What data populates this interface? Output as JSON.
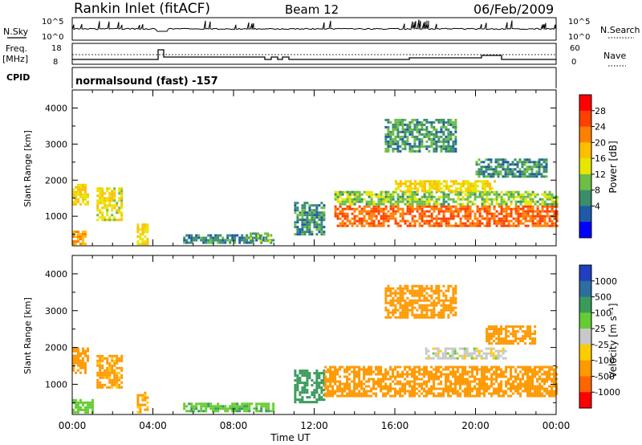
{
  "header": {
    "station": "Rankin Inlet (fitACF)",
    "beam": "Beam 12",
    "date": "06/Feb/2009"
  },
  "nsky_panel": {
    "left_label": "N.Sky",
    "left_ticks": [
      "10^5",
      "10^0"
    ],
    "right_label": "N.Search",
    "right_ticks": [
      "10^5",
      "10^0"
    ]
  },
  "freq_panel": {
    "left_label_1": "Freq.",
    "left_label_2": "[MHz]",
    "left_ticks": [
      "18",
      "8"
    ],
    "right_label": "Nave",
    "right_ticks": [
      "60",
      "0"
    ]
  },
  "cpid": {
    "label": "CPID",
    "value": "normalsound (fast) -157"
  },
  "power_colorbar": {
    "title": "Power [dB]",
    "ticks": [
      "28",
      "24",
      "20",
      "16",
      "12",
      "8",
      "4"
    ],
    "colors": [
      "#ff0000",
      "#ff4000",
      "#ff8000",
      "#ffbf00",
      "#e6e600",
      "#6cbe45",
      "#3b8e6b",
      "#1e5aa8",
      "#0000ff"
    ]
  },
  "velocity_colorbar": {
    "title": "Velocity [m s⁻¹]",
    "ticks": [
      "1000",
      "500",
      "100",
      "25",
      "-25",
      "-100",
      "-500",
      "-1000"
    ],
    "colors": [
      "#2040c0",
      "#2e6e9e",
      "#3a9a5a",
      "#66cc33",
      "#c8c8c8",
      "#ffcc00",
      "#ff9900",
      "#ff6600",
      "#ff0000"
    ]
  },
  "chart_data": [
    {
      "type": "heatmap",
      "name": "power",
      "xlabel": "",
      "ylabel": "Slant Range [km]",
      "x_ticks": [
        "00:00",
        "04:00",
        "08:00",
        "12:00",
        "16:00",
        "20:00",
        "00:00"
      ],
      "xlim_hours": [
        0,
        24
      ],
      "y_ticks": [
        1000,
        2000,
        3000,
        4000
      ],
      "ylim": [
        180,
        4500
      ],
      "colorbar": "Power [dB]",
      "regions": [
        {
          "t": [
            0.0,
            0.6
          ],
          "r": [
            250,
            600
          ],
          "v": 22
        },
        {
          "t": [
            0.0,
            0.8
          ],
          "r": [
            1300,
            1900
          ],
          "v": 18
        },
        {
          "t": [
            1.2,
            2.5
          ],
          "r": [
            900,
            1800
          ],
          "v": 17
        },
        {
          "t": [
            3.2,
            3.7
          ],
          "r": [
            250,
            800
          ],
          "v": 18
        },
        {
          "t": [
            5.5,
            10.0
          ],
          "r": [
            250,
            500
          ],
          "v": 7
        },
        {
          "t": [
            8.8,
            9.8
          ],
          "r": [
            300,
            550
          ],
          "v": 12
        },
        {
          "t": [
            11.0,
            12.5
          ],
          "r": [
            500,
            1400
          ],
          "v": 8
        },
        {
          "t": [
            13.0,
            24.0
          ],
          "r": [
            700,
            1300
          ],
          "v": 26
        },
        {
          "t": [
            13.0,
            24.0
          ],
          "r": [
            1300,
            1700
          ],
          "v": 13
        },
        {
          "t": [
            16.0,
            21.0
          ],
          "r": [
            1700,
            2000
          ],
          "v": 18
        },
        {
          "t": [
            15.5,
            19.0
          ],
          "r": [
            2800,
            3700
          ],
          "v": 9
        },
        {
          "t": [
            20.0,
            23.5
          ],
          "r": [
            2100,
            2600
          ],
          "v": 8
        }
      ]
    },
    {
      "type": "heatmap",
      "name": "velocity",
      "xlabel": "Time UT",
      "ylabel": "Slant Range [km]",
      "x_ticks": [
        "00:00",
        "04:00",
        "08:00",
        "12:00",
        "16:00",
        "20:00",
        "00:00"
      ],
      "xlim_hours": [
        0,
        24
      ],
      "y_ticks": [
        1000,
        2000,
        3000,
        4000
      ],
      "ylim": [
        180,
        4500
      ],
      "colorbar": "Velocity [m s⁻¹]",
      "regions": [
        {
          "t": [
            0.0,
            0.8
          ],
          "r": [
            1300,
            2000
          ],
          "v": -250
        },
        {
          "t": [
            0.0,
            1.0
          ],
          "r": [
            250,
            600
          ],
          "v": 60
        },
        {
          "t": [
            1.2,
            2.5
          ],
          "r": [
            900,
            1800
          ],
          "v": -150
        },
        {
          "t": [
            3.2,
            3.7
          ],
          "r": [
            250,
            800
          ],
          "v": -120
        },
        {
          "t": [
            5.5,
            10.0
          ],
          "r": [
            250,
            500
          ],
          "v": 80
        },
        {
          "t": [
            11.0,
            12.5
          ],
          "r": [
            500,
            1400
          ],
          "v": 300
        },
        {
          "t": [
            12.5,
            24.0
          ],
          "r": [
            700,
            1500
          ],
          "v": -200
        },
        {
          "t": [
            17.5,
            21.5
          ],
          "r": [
            1700,
            2000
          ],
          "v": 0
        },
        {
          "t": [
            15.5,
            19.0
          ],
          "r": [
            2800,
            3700
          ],
          "v": -300
        },
        {
          "t": [
            20.5,
            23.0
          ],
          "r": [
            2100,
            2600
          ],
          "v": -200
        }
      ]
    }
  ]
}
